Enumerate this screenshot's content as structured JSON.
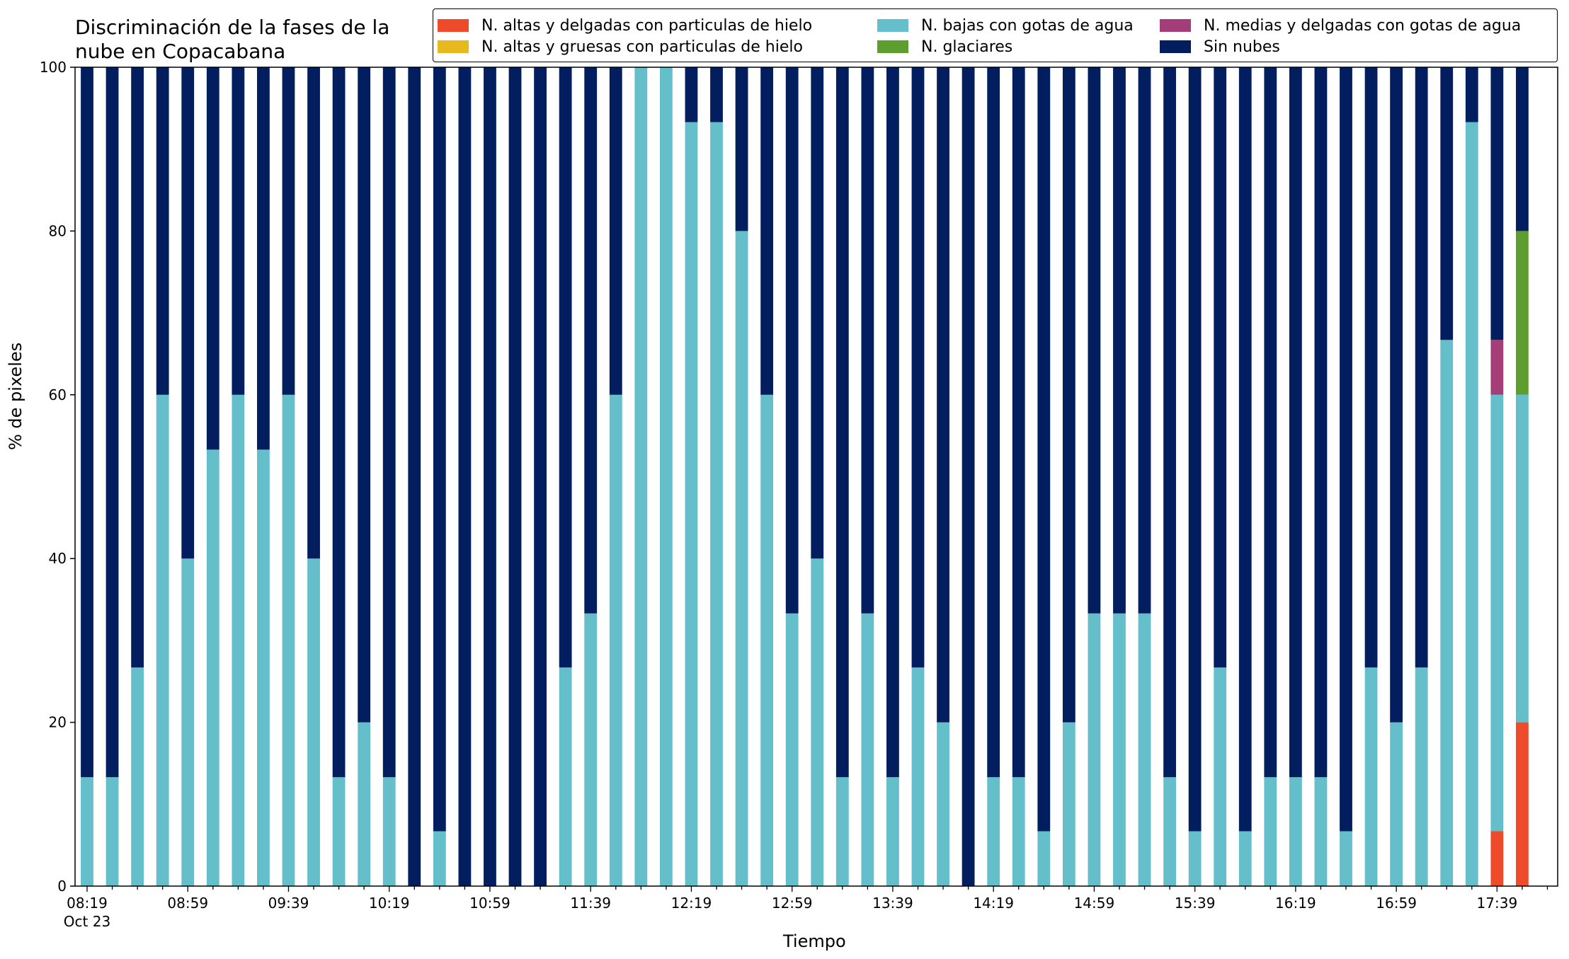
{
  "chart_data": {
    "type": "bar",
    "stacked": true,
    "title": "Discriminación de la fases de la nube en Copacabana",
    "xlabel": "Tiempo",
    "ylabel": "% de pixeles",
    "ylim": [
      0,
      100
    ],
    "yticks": [
      0,
      20,
      40,
      60,
      80,
      100
    ],
    "xtick_labels": [
      "08:19",
      "08:59",
      "09:39",
      "10:19",
      "10:59",
      "11:39",
      "12:19",
      "12:59",
      "13:39",
      "14:19",
      "14:59",
      "15:39",
      "16:19",
      "16:59",
      "17:39"
    ],
    "x_sublabel": "Oct 23",
    "x_start": "08:19",
    "x_step_minutes": 10,
    "categories": [
      "08:19",
      "08:29",
      "08:39",
      "08:49",
      "08:59",
      "09:09",
      "09:19",
      "09:29",
      "09:39",
      "09:49",
      "09:59",
      "10:09",
      "10:19",
      "10:29",
      "10:39",
      "10:49",
      "10:59",
      "11:09",
      "11:19",
      "11:29",
      "11:39",
      "11:49",
      "11:59",
      "12:09",
      "12:19",
      "12:29",
      "12:39",
      "12:49",
      "12:59",
      "13:09",
      "13:19",
      "13:29",
      "13:39",
      "13:49",
      "13:59",
      "14:09",
      "14:19",
      "14:29",
      "14:39",
      "14:49",
      "14:59",
      "15:09",
      "15:19",
      "15:29",
      "15:39",
      "15:49",
      "15:59",
      "16:09",
      "16:19",
      "16:29",
      "16:39",
      "16:49",
      "16:59",
      "17:09",
      "17:19",
      "17:29",
      "17:39",
      "17:49"
    ],
    "legend_position": "top",
    "grid": false,
    "series": [
      {
        "name": "N. altas y delgadas con particulas de hielo",
        "color": "#ee4b2b",
        "values": [
          0,
          0,
          0,
          0,
          0,
          0,
          0,
          0,
          0,
          0,
          0,
          0,
          0,
          0,
          0,
          0,
          0,
          0,
          0,
          0,
          0,
          0,
          0,
          0,
          0,
          0,
          0,
          0,
          0,
          0,
          0,
          0,
          0,
          0,
          0,
          0,
          0,
          0,
          0,
          0,
          0,
          0,
          0,
          0,
          0,
          0,
          0,
          0,
          0,
          0,
          0,
          0,
          0,
          0,
          0,
          0,
          6.7,
          20
        ]
      },
      {
        "name": "N. altas y gruesas con particulas de hielo",
        "color": "#e6b91e",
        "values": [
          0,
          0,
          0,
          0,
          0,
          0,
          0,
          0,
          0,
          0,
          0,
          0,
          0,
          0,
          0,
          0,
          0,
          0,
          0,
          0,
          0,
          0,
          0,
          0,
          0,
          0,
          0,
          0,
          0,
          0,
          0,
          0,
          0,
          0,
          0,
          0,
          0,
          0,
          0,
          0,
          0,
          0,
          0,
          0,
          0,
          0,
          0,
          0,
          0,
          0,
          0,
          0,
          0,
          0,
          0,
          0,
          0,
          0
        ]
      },
      {
        "name": "N. bajas con gotas de agua",
        "color": "#64bfca",
        "values": [
          13.3,
          13.3,
          26.7,
          60,
          40,
          53.3,
          60,
          53.3,
          60,
          40,
          13.3,
          20,
          13.3,
          0,
          6.7,
          0,
          0,
          0,
          0,
          26.7,
          33.3,
          60,
          100,
          100,
          93.3,
          93.3,
          80,
          60,
          33.3,
          40,
          13.3,
          33.3,
          13.3,
          26.7,
          20,
          0,
          13.3,
          13.3,
          6.7,
          20,
          33.3,
          33.3,
          33.3,
          13.3,
          6.7,
          26.7,
          6.7,
          13.3,
          13.3,
          13.3,
          6.7,
          26.7,
          20,
          26.7,
          66.7,
          93.3,
          53.3,
          40
        ]
      },
      {
        "name": "N. glaciares",
        "color": "#5d9e2f",
        "values": [
          0,
          0,
          0,
          0,
          0,
          0,
          0,
          0,
          0,
          0,
          0,
          0,
          0,
          0,
          0,
          0,
          0,
          0,
          0,
          0,
          0,
          0,
          0,
          0,
          0,
          0,
          0,
          0,
          0,
          0,
          0,
          0,
          0,
          0,
          0,
          0,
          0,
          0,
          0,
          0,
          0,
          0,
          0,
          0,
          0,
          0,
          0,
          0,
          0,
          0,
          0,
          0,
          0,
          0,
          0,
          0,
          0,
          20
        ]
      },
      {
        "name": "N. medias y delgadas con gotas de agua",
        "color": "#a33e78",
        "values": [
          0,
          0,
          0,
          0,
          0,
          0,
          0,
          0,
          0,
          0,
          0,
          0,
          0,
          0,
          0,
          0,
          0,
          0,
          0,
          0,
          0,
          0,
          0,
          0,
          0,
          0,
          0,
          0,
          0,
          0,
          0,
          0,
          0,
          0,
          0,
          0,
          0,
          0,
          0,
          0,
          0,
          0,
          0,
          0,
          0,
          0,
          0,
          0,
          0,
          0,
          0,
          0,
          0,
          0,
          0,
          0,
          6.7,
          0
        ]
      },
      {
        "name": "Sin nubes",
        "color": "#021e5f",
        "values": [
          86.7,
          86.7,
          73.3,
          40,
          60,
          46.7,
          40,
          46.7,
          40,
          60,
          86.7,
          80,
          86.7,
          100,
          93.3,
          100,
          100,
          100,
          100,
          73.3,
          66.7,
          40,
          0,
          0,
          6.7,
          6.7,
          20,
          40,
          66.7,
          60,
          86.7,
          66.7,
          86.7,
          73.3,
          80,
          100,
          86.7,
          86.7,
          93.3,
          80,
          66.7,
          66.7,
          66.7,
          86.7,
          93.3,
          73.3,
          93.3,
          86.7,
          86.7,
          86.7,
          93.3,
          73.3,
          80,
          73.3,
          33.3,
          6.7,
          33.3,
          20
        ]
      }
    ],
    "legend_order": [
      "N. altas y delgadas con particulas de hielo",
      "N. bajas con gotas de agua",
      "N. medias y delgadas con gotas de agua",
      "N. altas y gruesas con particulas de hielo",
      "N. glaciares",
      "Sin nubes"
    ]
  }
}
